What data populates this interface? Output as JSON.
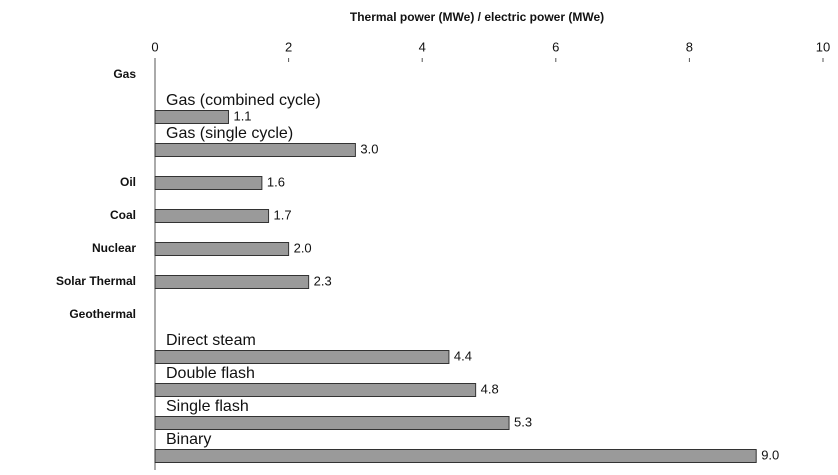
{
  "chart_data": {
    "type": "grouped-hbar",
    "xlabel": "Thermal power (MWe) / electric power (MWe)",
    "xlim": [
      0,
      10
    ],
    "xticks": [
      0,
      2,
      4,
      6,
      8,
      10
    ],
    "color": "#9a9a9a",
    "groups": [
      {
        "name": "Gas",
        "categories": [
          "Gas  (combined cycle)",
          "Gas  (single cycle)"
        ],
        "values": [
          1.1,
          3.0
        ],
        "value_labels": [
          "1.1",
          "3.0"
        ]
      },
      {
        "name": "Oil",
        "values": [
          1.6
        ],
        "value_labels": [
          "1.6"
        ]
      },
      {
        "name": "Coal",
        "values": [
          1.7
        ],
        "value_labels": [
          "1.7"
        ]
      },
      {
        "name": "Nuclear",
        "values": [
          2.0
        ],
        "value_labels": [
          "2.0"
        ]
      },
      {
        "name": "Solar Thermal",
        "values": [
          2.3
        ],
        "value_labels": [
          "2.3"
        ]
      },
      {
        "name": "Geothermal",
        "categories": [
          "Direct steam",
          "Double flash",
          "Single flash",
          "Binary"
        ],
        "values": [
          4.4,
          4.8,
          5.3,
          9.0
        ],
        "value_labels": [
          "4.4",
          "4.8",
          "5.3",
          "9.0"
        ]
      }
    ]
  }
}
